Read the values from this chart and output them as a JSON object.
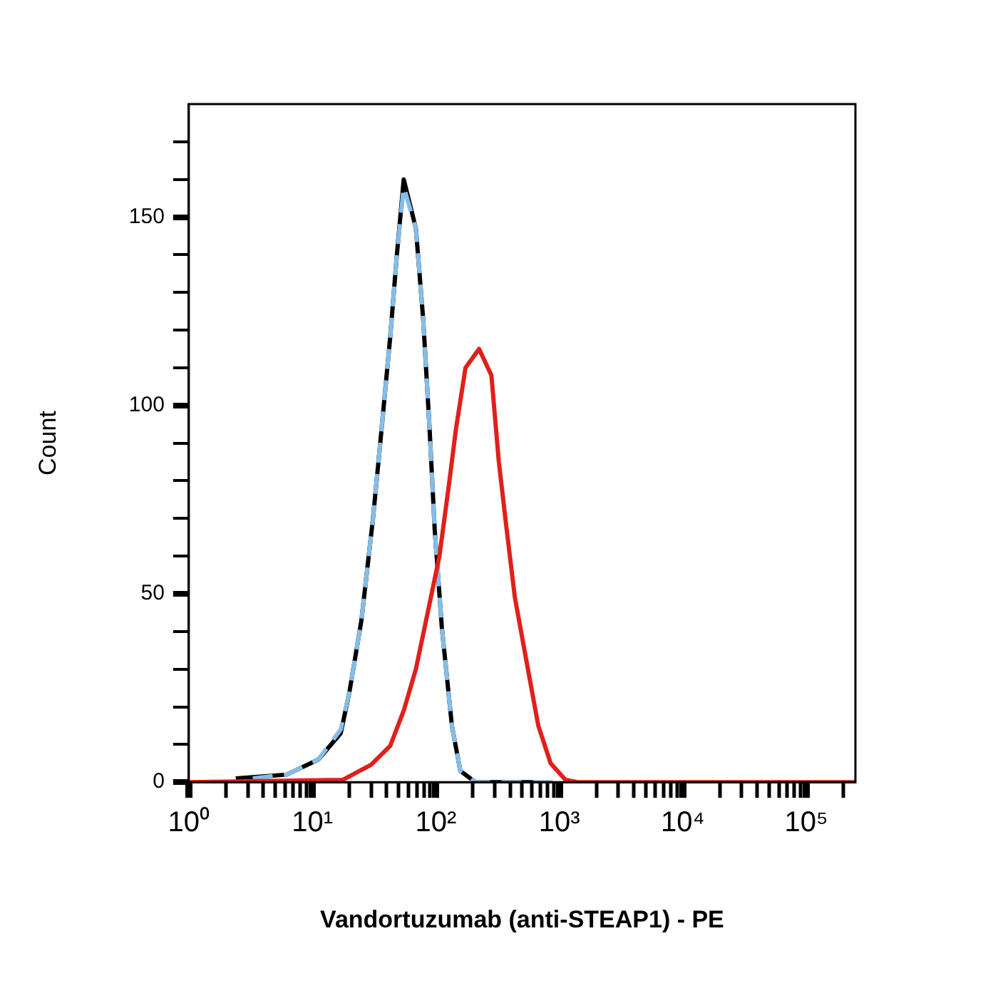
{
  "chart_data": {
    "type": "line",
    "xlabel": "Vandortuzumab (anti-STEAP1) - PE",
    "ylabel": "Count",
    "log": "x",
    "grid": false,
    "legend": false,
    "marker": "none",
    "xlim": [
      1,
      250000
    ],
    "ylim": [
      0,
      180
    ],
    "xticks": [
      {
        "value": 1,
        "label": "10⁰"
      },
      {
        "value": 2,
        "label": null
      },
      {
        "value": 3,
        "label": null
      },
      {
        "value": 4,
        "label": null
      },
      {
        "value": 5,
        "label": null
      },
      {
        "value": 6,
        "label": null
      },
      {
        "value": 7,
        "label": null
      },
      {
        "value": 8,
        "label": null
      },
      {
        "value": 9,
        "label": null
      },
      {
        "value": 10,
        "label": "10¹"
      },
      {
        "value": 20,
        "label": null
      },
      {
        "value": 30,
        "label": null
      },
      {
        "value": 40,
        "label": null
      },
      {
        "value": 50,
        "label": null
      },
      {
        "value": 60,
        "label": null
      },
      {
        "value": 70,
        "label": null
      },
      {
        "value": 80,
        "label": null
      },
      {
        "value": 90,
        "label": null
      },
      {
        "value": 100,
        "label": "10²"
      },
      {
        "value": 200,
        "label": null
      },
      {
        "value": 300,
        "label": null
      },
      {
        "value": 400,
        "label": null
      },
      {
        "value": 500,
        "label": null
      },
      {
        "value": 600,
        "label": null
      },
      {
        "value": 700,
        "label": null
      },
      {
        "value": 800,
        "label": null
      },
      {
        "value": 900,
        "label": null
      },
      {
        "value": 1000,
        "label": "10³"
      },
      {
        "value": 2000,
        "label": null
      },
      {
        "value": 3000,
        "label": null
      },
      {
        "value": 4000,
        "label": null
      },
      {
        "value": 5000,
        "label": null
      },
      {
        "value": 6000,
        "label": null
      },
      {
        "value": 7000,
        "label": null
      },
      {
        "value": 8000,
        "label": null
      },
      {
        "value": 9000,
        "label": null
      },
      {
        "value": 10000,
        "label": "10⁴"
      },
      {
        "value": 20000,
        "label": null
      },
      {
        "value": 30000,
        "label": null
      },
      {
        "value": 40000,
        "label": null
      },
      {
        "value": 50000,
        "label": null
      },
      {
        "value": 60000,
        "label": null
      },
      {
        "value": 70000,
        "label": null
      },
      {
        "value": 80000,
        "label": null
      },
      {
        "value": 90000,
        "label": null
      },
      {
        "value": 100000,
        "label": "10⁵"
      },
      {
        "value": 200000,
        "label": null
      }
    ],
    "yticks": [
      0,
      {
        "value": 10,
        "label": null
      },
      {
        "value": 20,
        "label": null
      },
      {
        "value": 30,
        "label": null
      },
      {
        "value": 40,
        "label": null
      },
      50,
      {
        "value": 60,
        "label": null
      },
      {
        "value": 70,
        "label": null
      },
      {
        "value": 80,
        "label": null
      },
      {
        "value": 90,
        "label": null
      },
      100,
      {
        "value": 110,
        "label": null
      },
      {
        "value": 120,
        "label": null
      },
      {
        "value": 130,
        "label": null
      },
      {
        "value": 140,
        "label": null
      },
      150,
      {
        "value": 160,
        "label": null
      },
      {
        "value": 170,
        "label": null
      }
    ],
    "series": [
      {
        "color": "#000000",
        "line_style": "solid",
        "x": [
          2.4,
          6.2,
          11.2,
          17,
          20,
          25,
          31,
          35.5,
          42.7,
          48.4,
          55,
          69,
          79,
          89,
          98,
          112,
          135,
          158,
          209,
          631
        ],
        "values": [
          1,
          2,
          6,
          13,
          24,
          43,
          70,
          90,
          118,
          140,
          160,
          147,
          123,
          94,
          67,
          41,
          15,
          3,
          0,
          0
        ]
      },
      {
        "color": "#86bde6",
        "line_style": "dashed",
        "x": [
          3.3,
          6.2,
          11.2,
          17,
          20,
          25,
          31,
          35.5,
          42.7,
          48.4,
          55,
          69,
          79,
          89,
          98,
          112,
          135,
          158,
          209,
          1000
        ],
        "values": [
          1,
          2,
          6,
          14,
          24,
          43,
          70,
          90,
          118,
          140,
          158,
          147,
          123,
          94,
          67,
          41,
          15,
          3,
          0,
          0
        ]
      },
      {
        "color": "#e0201b",
        "line_style": "solid",
        "x": [
          1,
          17.6,
          29.9,
          42.7,
          55,
          69,
          86,
          107,
          129,
          146,
          174,
          224,
          282,
          324,
          372,
          437,
          550,
          676,
          851,
          1122,
          1413,
          250000
        ],
        "values": [
          0,
          0.6,
          4.6,
          9.6,
          19,
          30,
          45,
          60,
          80,
          94,
          110,
          115,
          108,
          85,
          68,
          49,
          31,
          15,
          5,
          0.6,
          0,
          0
        ]
      }
    ]
  }
}
